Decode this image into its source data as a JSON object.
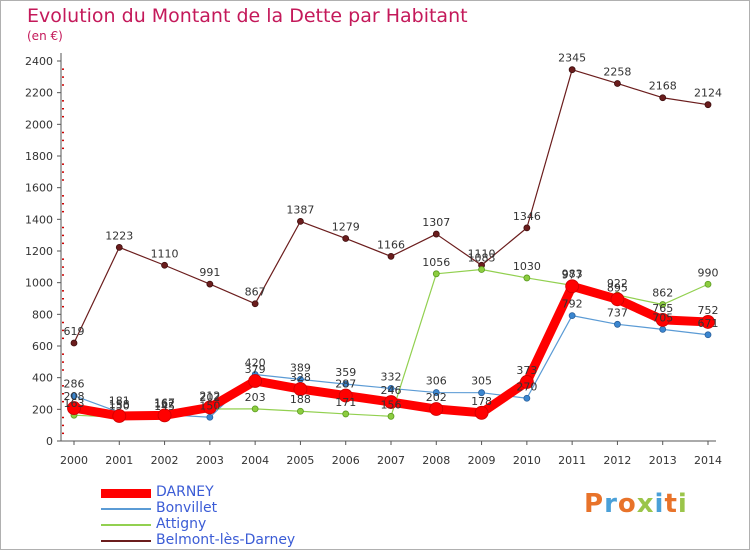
{
  "title": "Evolution du Montant de la Dette par Habitant",
  "subtitle": "(en €)",
  "logo": {
    "text": "Proxiti",
    "colors": [
      "#e8732a",
      "#4aa0d8",
      "#e8732a",
      "#9bc54a",
      "#4aa0d8",
      "#e8732a",
      "#9bc54a"
    ]
  },
  "chart_data": {
    "type": "line",
    "title": "Evolution du Montant de la Dette par Habitant",
    "ylabel": "(en €)",
    "xlabel": "",
    "x": [
      "2000",
      "2001",
      "2002",
      "2003",
      "2004",
      "2005",
      "2006",
      "2007",
      "2008",
      "2009",
      "2010",
      "2011",
      "2012",
      "2013",
      "2014"
    ],
    "ylim": [
      0,
      2400
    ],
    "yticks": [
      0,
      200,
      400,
      600,
      800,
      1000,
      1200,
      1400,
      1600,
      1800,
      2000,
      2200,
      2400
    ],
    "grid": false,
    "legend_position": "bottom-left",
    "series": [
      {
        "name": "DARNEY",
        "color": "#ff0000",
        "values": [
          208,
          158,
          162,
          212,
          379,
          328,
          287,
          246,
          202,
          178,
          373,
          977,
          895,
          765,
          752
        ]
      },
      {
        "name": "Bonvillet",
        "color": "#5b9bd5",
        "values": [
          286,
          181,
          167,
          150,
          420,
          389,
          359,
          332,
          306,
          305,
          270,
          792,
          737,
          705,
          671
        ]
      },
      {
        "name": "Attigny",
        "color": "#92d050",
        "values": [
          163,
          150,
          145,
          202,
          203,
          188,
          171,
          156,
          1056,
          1083,
          1030,
          983,
          922,
          862,
          990
        ]
      },
      {
        "name": "Belmont-lès-Darney",
        "color": "#6b1d1d",
        "values": [
          619,
          1223,
          1110,
          991,
          867,
          1387,
          1279,
          1166,
          1307,
          1110,
          1346,
          2345,
          2258,
          2168,
          2124
        ]
      }
    ]
  }
}
